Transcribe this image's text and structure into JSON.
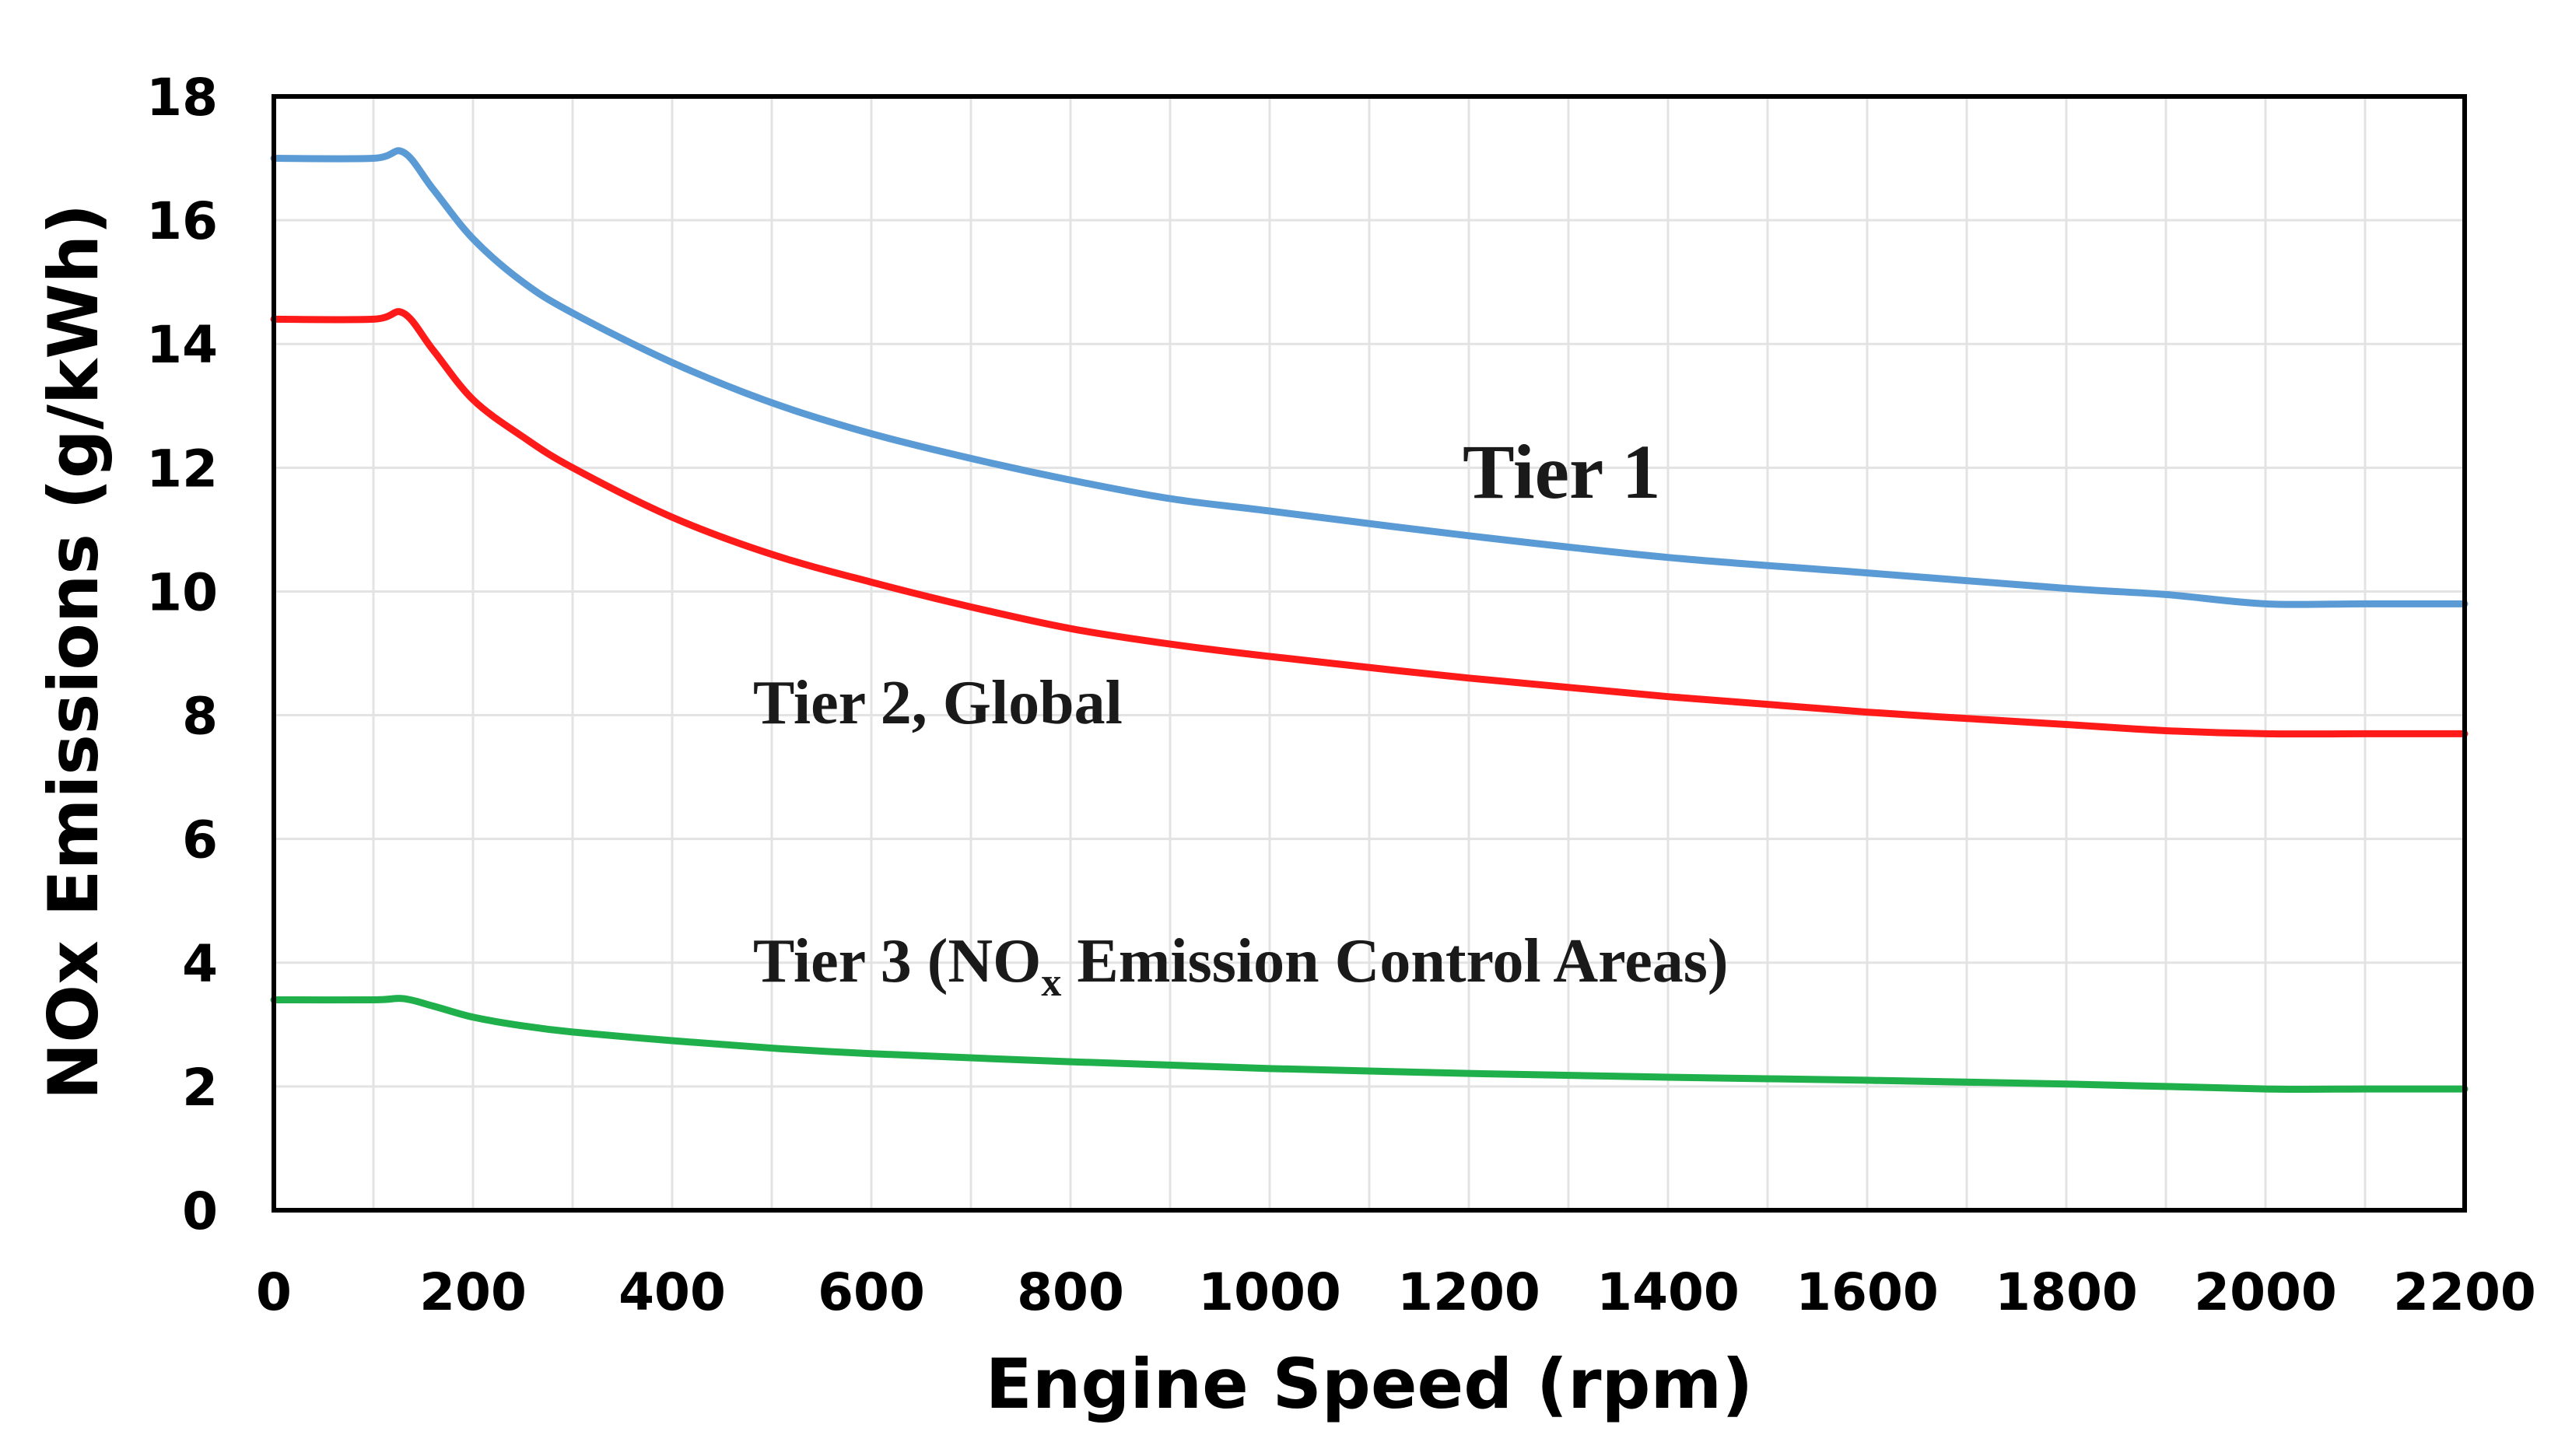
{
  "chart_data": {
    "type": "line",
    "title": "",
    "xlabel": "Engine Speed (rpm)",
    "ylabel": "NOx Emissions (g/kWh)",
    "xlim": [
      0,
      2200
    ],
    "ylim": [
      0,
      18
    ],
    "xticks": [
      0,
      200,
      400,
      600,
      800,
      1000,
      1200,
      1400,
      1600,
      1800,
      2000,
      2200
    ],
    "yticks": [
      0,
      2,
      4,
      6,
      8,
      10,
      12,
      14,
      16,
      18
    ],
    "grid": true,
    "series": [
      {
        "name": "Tier 1",
        "color": "#5b9bd5",
        "x": [
          0,
          100,
          130,
          160,
          200,
          250,
          300,
          400,
          500,
          600,
          700,
          800,
          900,
          1000,
          1200,
          1400,
          1600,
          1800,
          1900,
          2000,
          2100,
          2200
        ],
        "y": [
          17.0,
          17.0,
          17.1,
          16.5,
          15.7,
          15.0,
          14.5,
          13.7,
          13.05,
          12.55,
          12.15,
          11.8,
          11.5,
          11.3,
          10.9,
          10.55,
          10.3,
          10.05,
          9.95,
          9.8,
          9.8,
          9.8
        ]
      },
      {
        "name": "Tier 2, Global",
        "color": "#ff1a1a",
        "x": [
          0,
          100,
          130,
          160,
          200,
          250,
          300,
          400,
          500,
          600,
          700,
          800,
          900,
          1000,
          1200,
          1400,
          1600,
          1800,
          1900,
          2000,
          2100,
          2200
        ],
        "y": [
          14.4,
          14.4,
          14.5,
          13.9,
          13.1,
          12.5,
          12.0,
          11.2,
          10.6,
          10.15,
          9.75,
          9.4,
          9.15,
          8.95,
          8.6,
          8.3,
          8.05,
          7.85,
          7.75,
          7.7,
          7.7,
          7.7
        ]
      },
      {
        "name": "Tier 3 (NOx Emission Control Areas)",
        "color": "#1fb04b",
        "x": [
          0,
          100,
          130,
          160,
          200,
          250,
          300,
          400,
          500,
          600,
          800,
          1000,
          1200,
          1400,
          1600,
          1800,
          2000,
          2100,
          2200
        ],
        "y": [
          3.4,
          3.4,
          3.42,
          3.3,
          3.12,
          2.98,
          2.88,
          2.74,
          2.62,
          2.53,
          2.4,
          2.29,
          2.21,
          2.15,
          2.1,
          2.04,
          1.96,
          1.96,
          1.96
        ]
      }
    ],
    "annotations": {
      "tier1": "Tier 1",
      "tier2": "Tier 2, Global",
      "tier3_prefix": "Tier 3 (NO",
      "tier3_sub": "x",
      "tier3_suffix": " Emission Control Areas)"
    }
  }
}
